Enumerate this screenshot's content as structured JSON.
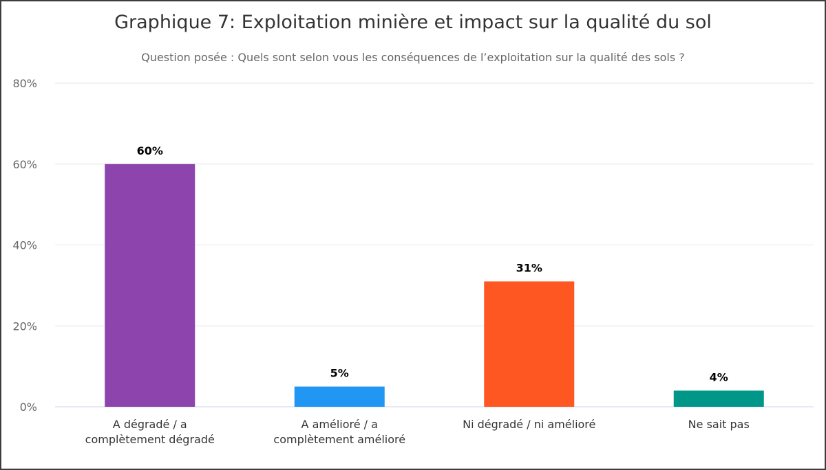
{
  "chart_data": {
    "type": "bar",
    "title": "Graphique 7: Exploitation minière et impact sur la qualité du sol",
    "subtitle": "Question posée : Quels sont selon vous les conséquences de l’exploitation sur la qualité des sols ?",
    "categories": [
      [
        "A dégradé / a",
        "complètement dégradé"
      ],
      [
        "A amélioré / a",
        "complètement amélioré"
      ],
      [
        "Ni dégradé / ni amélioré"
      ],
      [
        "Ne sait pas"
      ]
    ],
    "values": [
      60,
      5,
      31,
      4
    ],
    "data_labels": [
      "60%",
      "5%",
      "31%",
      "4%"
    ],
    "colors": [
      "#8e44ad",
      "#2196f3",
      "#ff5722",
      "#009688"
    ],
    "ylim": [
      0,
      80
    ],
    "yticks": [
      0,
      20,
      40,
      60,
      80
    ],
    "ytick_labels": [
      "0%",
      "20%",
      "40%",
      "60%",
      "80%"
    ],
    "grid": true,
    "legend": "none"
  }
}
